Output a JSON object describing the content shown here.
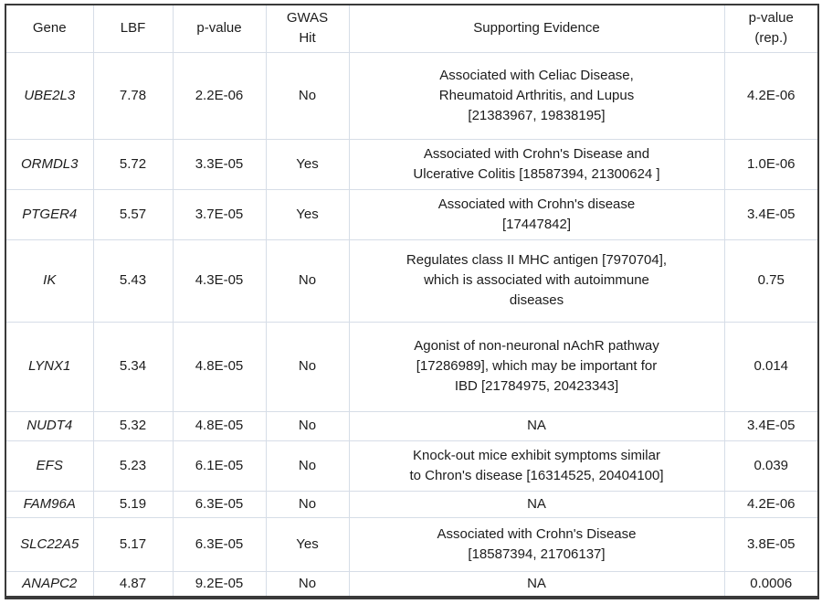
{
  "colors": {
    "frame_border": "#3a3a3a",
    "grid_line": "#d6dde7",
    "text": "#1c1c1c",
    "background": "#ffffff"
  },
  "table": {
    "headers": [
      {
        "line1": "Gene"
      },
      {
        "line1": "LBF"
      },
      {
        "line1": "p-value"
      },
      {
        "line1": "GWAS",
        "line2": "Hit"
      },
      {
        "line1": "Supporting Evidence"
      },
      {
        "line1": "p-value",
        "line2": "(rep.)"
      }
    ],
    "rows": [
      {
        "gene": "UBE2L3",
        "lbf": "7.78",
        "pvalue": "2.2E-06",
        "gwas_hit": "No",
        "evidence": [
          "Associated with Celiac Disease,",
          "Rheumatoid Arthritis, and Lupus",
          "[21383967, 19838195]"
        ],
        "pvalue_rep": "4.2E-06"
      },
      {
        "gene": "ORMDL3",
        "lbf": "5.72",
        "pvalue": "3.3E-05",
        "gwas_hit": "Yes",
        "evidence": [
          "Associated with Crohn's Disease and",
          "Ulcerative Colitis [18587394, 21300624 ]"
        ],
        "pvalue_rep": "1.0E-06"
      },
      {
        "gene": "PTGER4",
        "lbf": "5.57",
        "pvalue": "3.7E-05",
        "gwas_hit": "Yes",
        "evidence": [
          "Associated with Crohn's disease",
          "[17447842]"
        ],
        "pvalue_rep": "3.4E-05"
      },
      {
        "gene": "IK",
        "lbf": "5.43",
        "pvalue": "4.3E-05",
        "gwas_hit": "No",
        "evidence": [
          "Regulates class II MHC antigen [7970704],",
          "which is associated with autoimmune",
          "diseases"
        ],
        "pvalue_rep": "0.75"
      },
      {
        "gene": "LYNX1",
        "lbf": "5.34",
        "pvalue": "4.8E-05",
        "gwas_hit": "No",
        "evidence": [
          "Agonist of non-neuronal nAchR pathway",
          "[17286989], which may be important for",
          "IBD [21784975, 20423343]"
        ],
        "pvalue_rep": "0.014"
      },
      {
        "gene": "NUDT4",
        "lbf": "5.32",
        "pvalue": "4.8E-05",
        "gwas_hit": "No",
        "evidence": [
          "NA"
        ],
        "pvalue_rep": "3.4E-05"
      },
      {
        "gene": "EFS",
        "lbf": "5.23",
        "pvalue": "6.1E-05",
        "gwas_hit": "No",
        "evidence": [
          "Knock-out mice exhibit symptoms similar",
          "to Chron's disease [16314525, 20404100]"
        ],
        "pvalue_rep": "0.039"
      },
      {
        "gene": "FAM96A",
        "lbf": "5.19",
        "pvalue": "6.3E-05",
        "gwas_hit": "No",
        "evidence": [
          "NA"
        ],
        "pvalue_rep": "4.2E-06"
      },
      {
        "gene": "SLC22A5",
        "lbf": "5.17",
        "pvalue": "6.3E-05",
        "gwas_hit": "Yes",
        "evidence": [
          "Associated with Crohn's Disease",
          "[18587394, 21706137]"
        ],
        "pvalue_rep": "3.8E-05"
      },
      {
        "gene": "ANAPC2",
        "lbf": "4.87",
        "pvalue": "9.2E-05",
        "gwas_hit": "No",
        "evidence": [
          "NA"
        ],
        "pvalue_rep": "0.0006"
      }
    ]
  }
}
